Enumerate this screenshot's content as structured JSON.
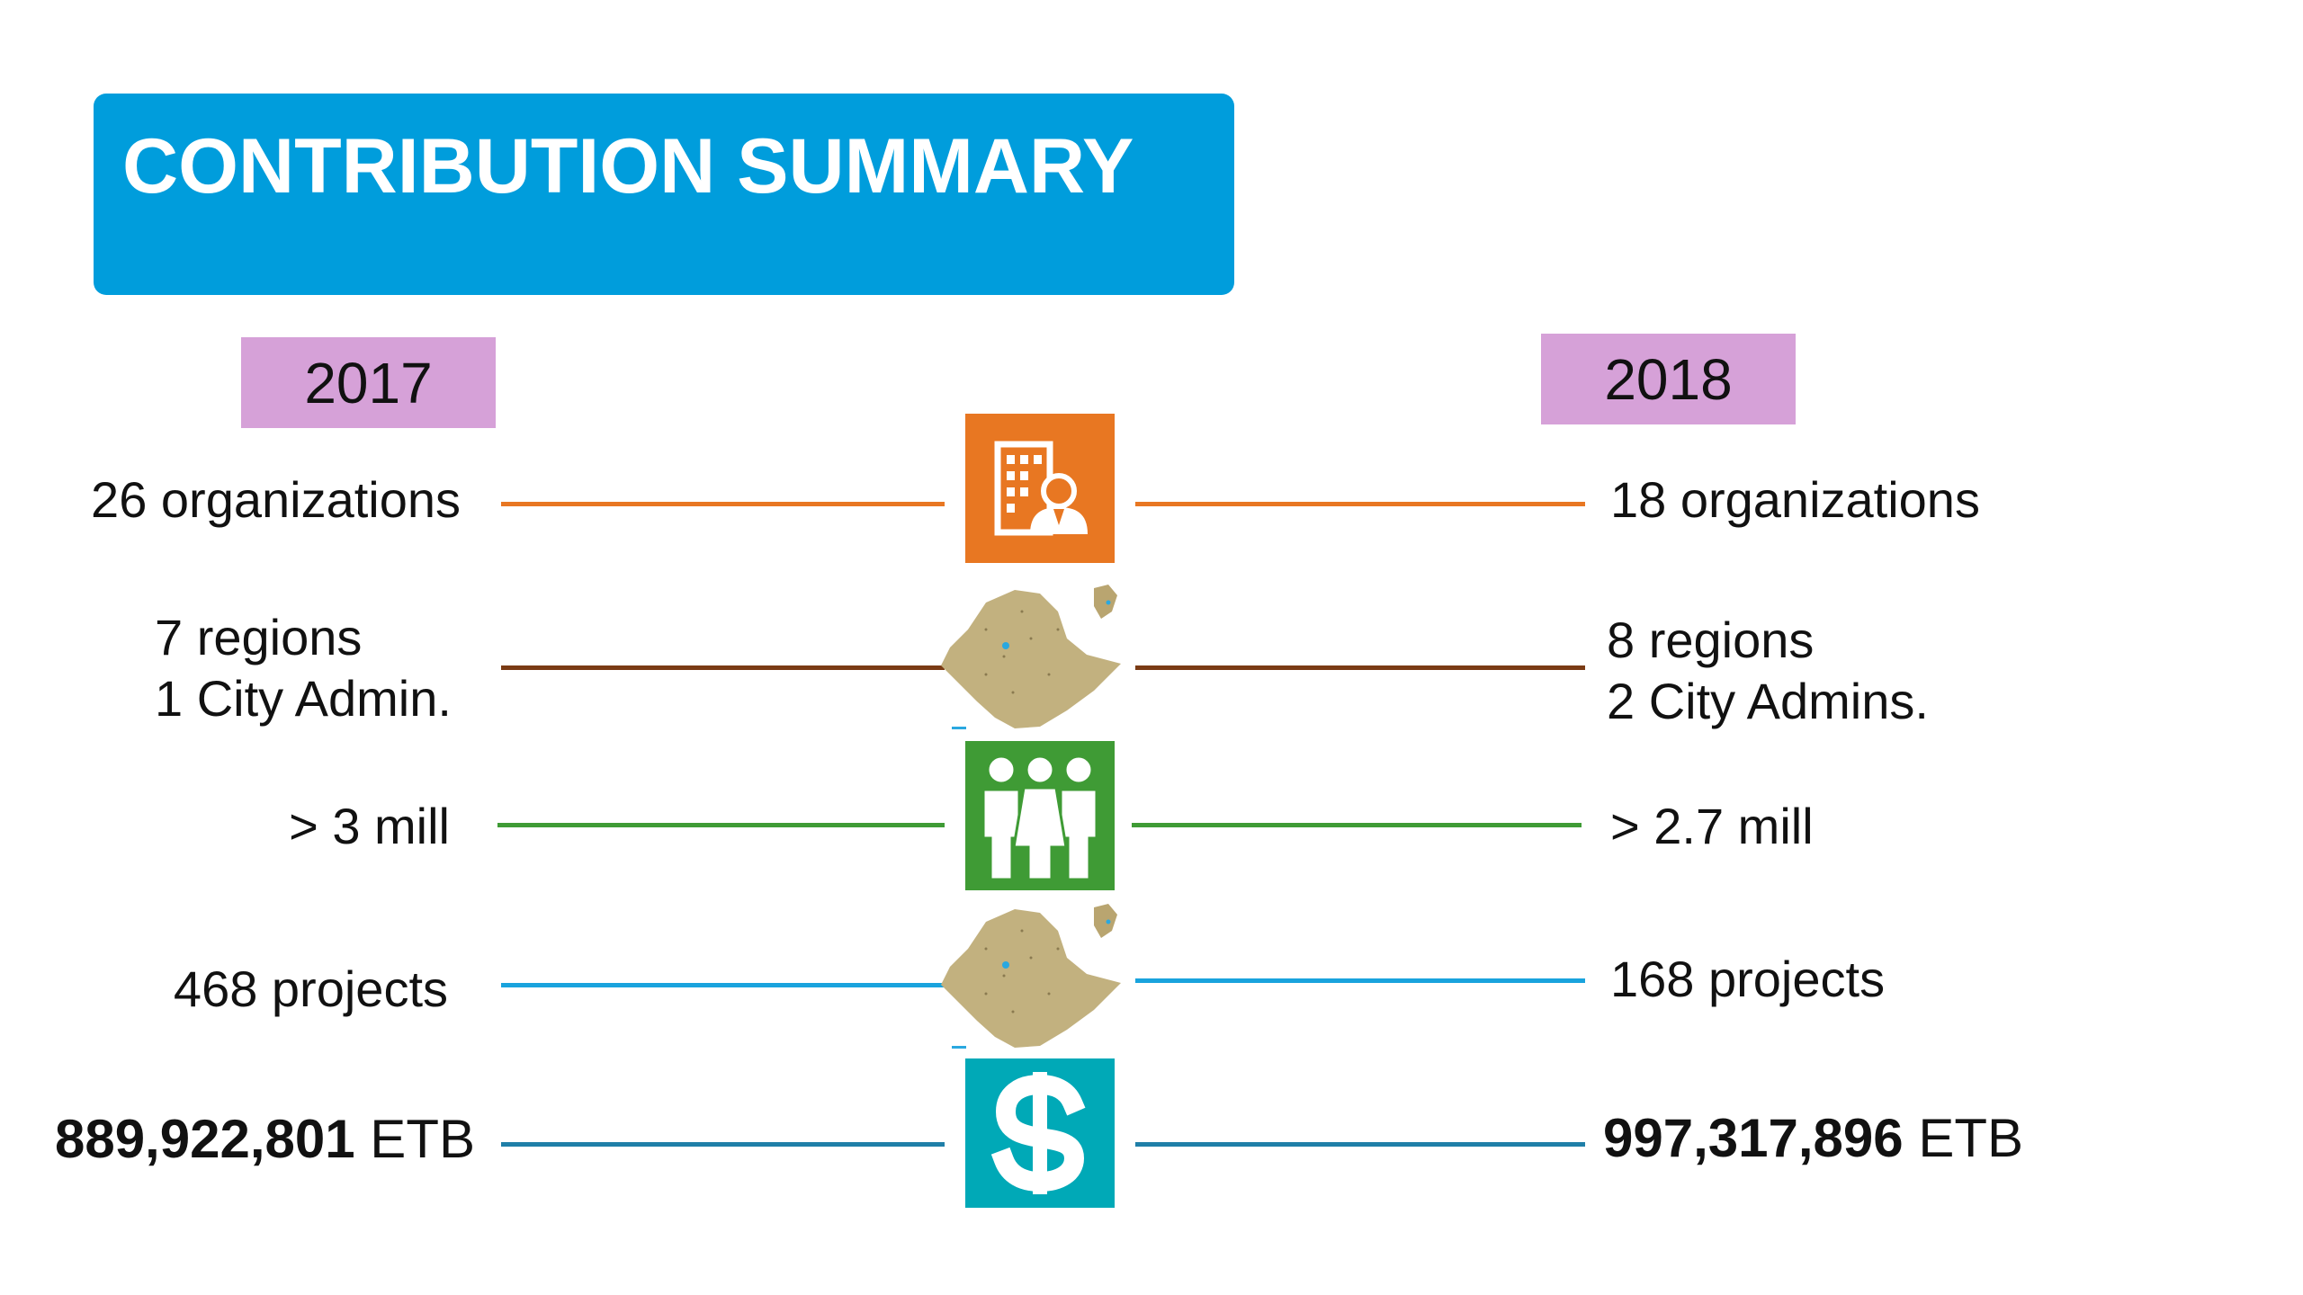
{
  "title": "CONTRIBUTION SUMMARY",
  "years": {
    "left": "2017",
    "right": "2018"
  },
  "rows": [
    {
      "left": [
        "26 organizations"
      ],
      "right": [
        "18 organizations"
      ],
      "icon": "building-person-icon",
      "color": "#e87722"
    },
    {
      "left": [
        "7 regions",
        "1 City Admin."
      ],
      "right": [
        "8 regions",
        "2 City Admins."
      ],
      "icon": "ethiopia-map-icon",
      "color": "#7a3b14"
    },
    {
      "left": [
        "> 3 mill"
      ],
      "right": [
        "> 2.7 mill"
      ],
      "icon": "people-group-icon",
      "color": "#3f9b35"
    },
    {
      "left": [
        "468  projects"
      ],
      "right": [
        "168 projects"
      ],
      "icon": "ethiopia-map-icon",
      "color": "#19a3dd"
    },
    {
      "left_bold": "889,922,801",
      "left_unit": "ETB",
      "right_bold": "997,317,896",
      "right_unit": "ETB",
      "icon": "dollar-sign-icon",
      "color": "#1f7fa8"
    }
  ],
  "colors": {
    "title_bg": "#009ddc",
    "year_bg": "#d6a1d8",
    "org_icon_bg": "#e87722",
    "people_icon_bg": "#3f9b35",
    "money_icon_bg": "#00a9b7",
    "map_fill": "#c2b17f"
  }
}
